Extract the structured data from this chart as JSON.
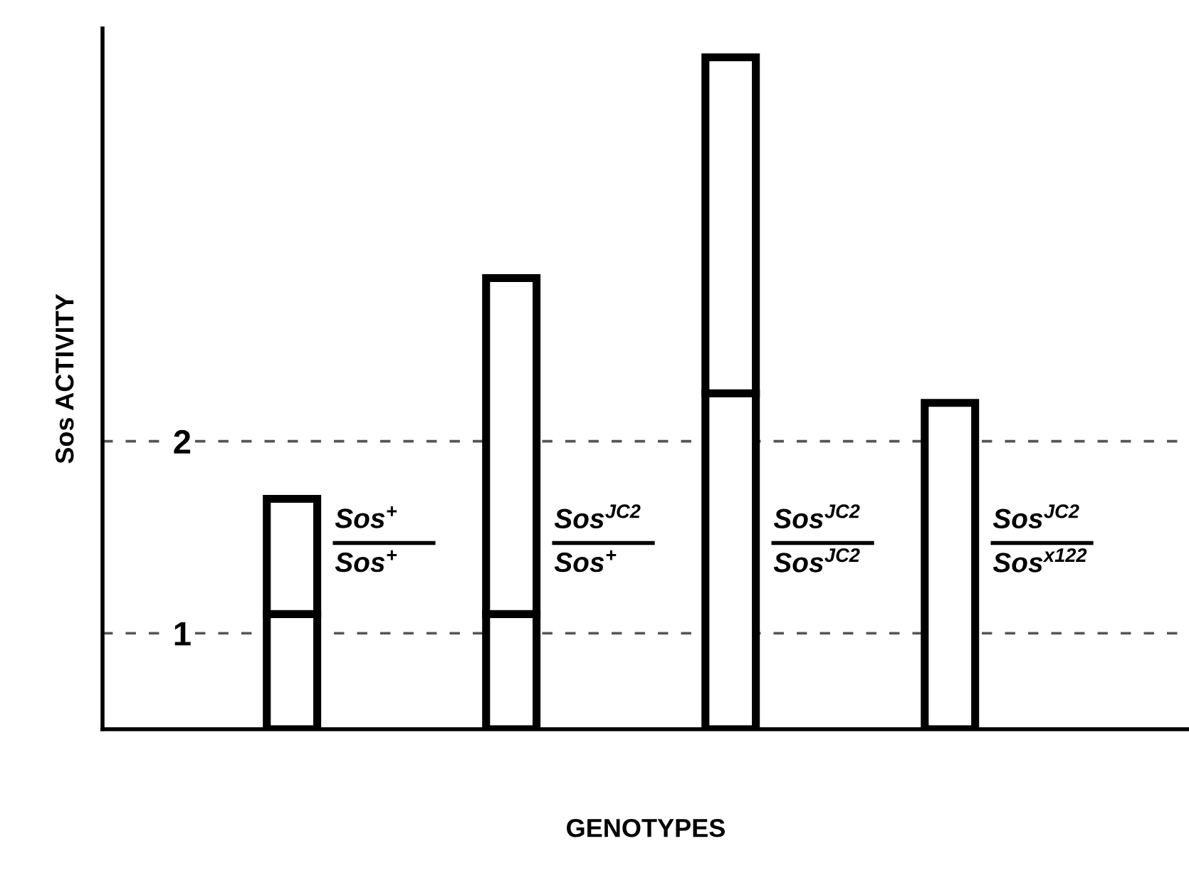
{
  "chart_data": {
    "type": "bar",
    "xlabel": "GENOTYPES",
    "ylabel": "Sos ACTIVITY",
    "categories": [
      "Sos$^{+}$\nSos$^{+}$",
      "Sos$^{JC2}$\nSos$^{+}$",
      "Sos$^{JC2}$\nSos$^{JC2}$",
      "Sos$^{JC2}$\nSos$^{x122}$"
    ],
    "series": [
      {
        "color": "#ffffff",
        "base": [
          0.5,
          0.5,
          0.5,
          0.5
        ],
        "values": [
          0.6,
          0.6,
          1.75,
          1.7
        ]
      },
      {
        "color": "#ffffff",
        "base": [
          1.1,
          1.1,
          2.25,
          null
        ],
        "values": [
          0.6,
          1.75,
          1.75,
          null
        ]
      }
    ],
    "ylim": [
      0.5,
      4.15
    ],
    "yticks": [
      1,
      2
    ],
    "grid": "y",
    "line_style": "dashed"
  }
}
